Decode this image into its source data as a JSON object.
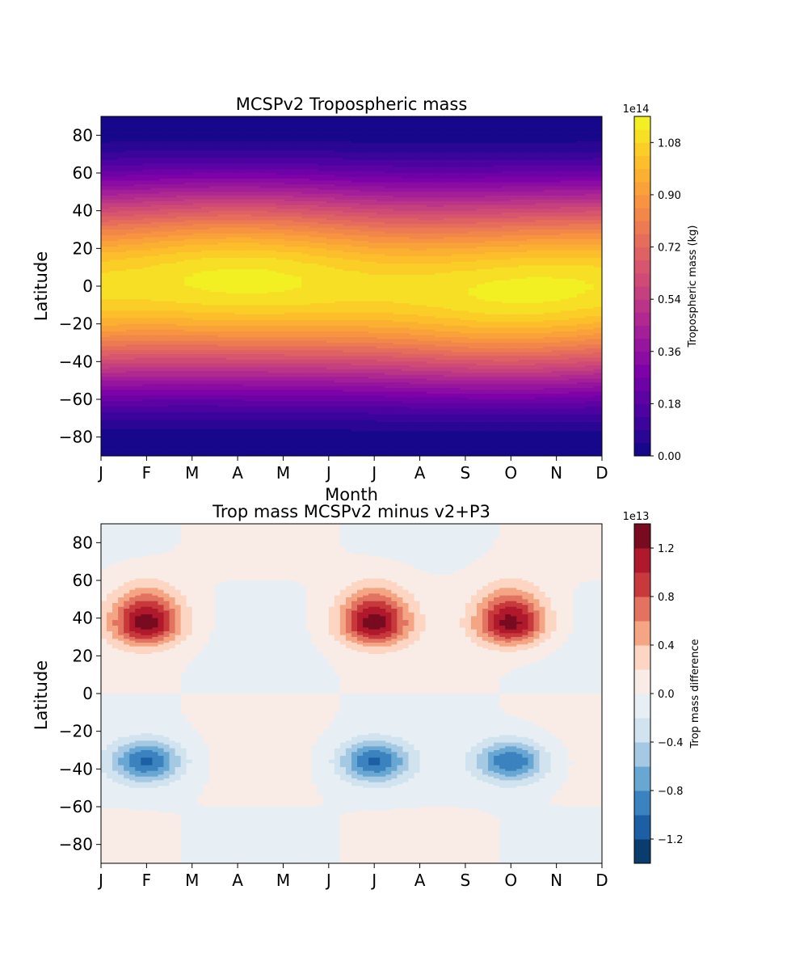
{
  "chart_data": [
    {
      "type": "heatmap",
      "subtype": "filled-contour",
      "title": "MCSPv2 Tropospheric mass",
      "xlabel": "Month",
      "ylabel": "Latitude",
      "x_ticks": [
        "J",
        "F",
        "M",
        "A",
        "M",
        "J",
        "J",
        "A",
        "S",
        "O",
        "N",
        "D"
      ],
      "xlim": [
        0,
        11
      ],
      "ylim": [
        -90,
        90
      ],
      "y_ticks": [
        "80",
        "60",
        "40",
        "20",
        "0",
        "−20",
        "−40",
        "−60",
        "−80"
      ],
      "colormap": "plasma",
      "colorbar": {
        "label": "Tropospheric mass (kg)",
        "exponent": "1e14",
        "range": [
          0.0,
          1.17
        ],
        "ticks": [
          "0.00",
          "0.18",
          "0.36",
          "0.54",
          "0.72",
          "0.90",
          "1.08"
        ],
        "levels": 26
      },
      "field_description": "Maximum near equator (~1.1e14 kg), decreasing smoothly toward both poles (~0 kg); weak seasonal variation"
    },
    {
      "type": "heatmap",
      "subtype": "filled-contour",
      "title": "Trop mass MCSPv2 minus v2+P3",
      "xlabel": "",
      "ylabel": "Latitude",
      "x_ticks": [
        "J",
        "F",
        "M",
        "A",
        "M",
        "J",
        "J",
        "A",
        "S",
        "O",
        "N",
        "D"
      ],
      "xlim": [
        0,
        11
      ],
      "ylim": [
        -90,
        90
      ],
      "y_ticks": [
        "80",
        "60",
        "40",
        "20",
        "0",
        "−20",
        "−40",
        "−60",
        "−80"
      ],
      "colormap": "RdBu_r",
      "colorbar": {
        "label": "Trop mass difference",
        "exponent": "1e13",
        "range": [
          -1.4,
          1.4
        ],
        "ticks": [
          "1.2",
          "0.8",
          "0.4",
          "0.0",
          "−0.4",
          "−0.8",
          "−1.2"
        ],
        "levels": 14
      },
      "features": [
        {
          "month": 1,
          "lat": 37,
          "peak": 1.3
        },
        {
          "month": 6,
          "lat": 37,
          "peak": 1.3
        },
        {
          "month": 9,
          "lat": 37,
          "peak": 1.3
        },
        {
          "month": 1,
          "lat": -36,
          "peak": -1.0
        },
        {
          "month": 6,
          "lat": -36,
          "peak": -1.0
        },
        {
          "month": 9,
          "lat": -36,
          "peak": -1.0
        }
      ]
    }
  ]
}
